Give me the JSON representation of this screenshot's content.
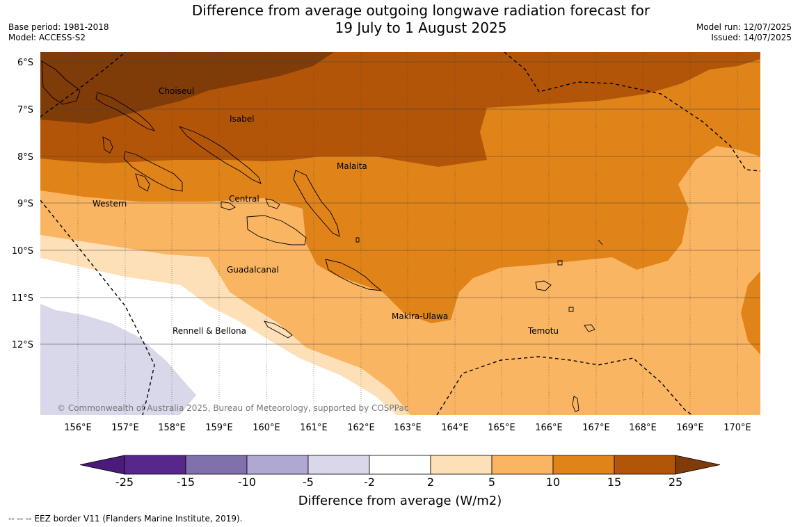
{
  "title": {
    "line1": "Difference from average outgoing longwave radiation forecast for",
    "line2": "19 July to 1 August 2025"
  },
  "meta_left": {
    "base_period": "Base period: 1981-2018",
    "model": "Model: ACCESS-S2"
  },
  "meta_right": {
    "model_run": "Model run: 12/07/2025",
    "issued": "Issued: 14/07/2025"
  },
  "map": {
    "lat_labels": [
      "6°S",
      "7°S",
      "8°S",
      "9°S",
      "10°S",
      "11°S",
      "12°S"
    ],
    "lon_labels": [
      "156°E",
      "157°E",
      "158°E",
      "159°E",
      "160°E",
      "161°E",
      "162°E",
      "163°E",
      "164°E",
      "165°E",
      "166°E",
      "167°E",
      "168°E",
      "169°E",
      "170°E"
    ],
    "regions": [
      "Choiseul",
      "Isabel",
      "Malaita",
      "Western",
      "Central",
      "Guadalcanal",
      "Makira-Ulawa",
      "Rennell & Bellona",
      "Temotu"
    ],
    "copyright": "© Commonwealth of Australia 2025, Bureau of Meteorology, supported by COSPPac"
  },
  "colorbar": {
    "ticks": [
      "-25",
      "-15",
      "-10",
      "-5",
      "-2",
      "2",
      "5",
      "10",
      "15",
      "25"
    ],
    "colors": [
      "#4b1a7a",
      "#57278c",
      "#8070ab",
      "#b0a8d2",
      "#d8d8ea",
      "#ffffff",
      "#fee0b8",
      "#fab563",
      "#e08318",
      "#b25508",
      "#7f3b08"
    ],
    "label": "Difference from average (W/m2)"
  },
  "footer": "--  --  -- EEZ border V11 (Flanders Marine Institute, 2019)."
}
